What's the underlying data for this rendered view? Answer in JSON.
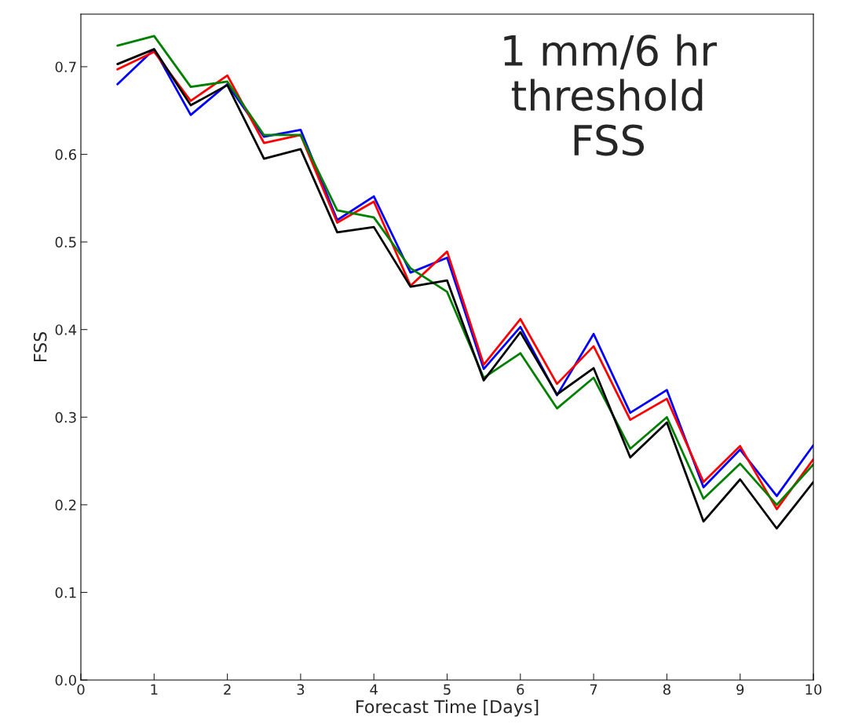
{
  "chart_data": {
    "type": "line",
    "xlabel": "Forecast Time [Days]",
    "ylabel": "FSS",
    "annotations": [
      "1 mm/6 hr\nthreshold\nFSS"
    ],
    "x": [
      0.5,
      1,
      1.5,
      2,
      2.5,
      3,
      3.5,
      4,
      4.5,
      5,
      5.5,
      6,
      6.5,
      7,
      7.5,
      8,
      8.5,
      9,
      9.5,
      10
    ],
    "series": [
      {
        "color": "#0000ff",
        "values": [
          0.68,
          0.72,
          0.645,
          0.68,
          0.62,
          0.628,
          0.525,
          0.552,
          0.465,
          0.482,
          0.355,
          0.403,
          0.325,
          0.395,
          0.305,
          0.331,
          0.22,
          0.263,
          0.21,
          0.268
        ]
      },
      {
        "color": "#ff0000",
        "values": [
          0.697,
          0.717,
          0.661,
          0.69,
          0.613,
          0.622,
          0.522,
          0.546,
          0.45,
          0.489,
          0.36,
          0.412,
          0.338,
          0.381,
          0.297,
          0.321,
          0.226,
          0.267,
          0.195,
          0.252
        ]
      },
      {
        "color": "#008000",
        "values": [
          0.724,
          0.735,
          0.677,
          0.683,
          0.622,
          0.622,
          0.536,
          0.528,
          0.47,
          0.443,
          0.345,
          0.373,
          0.31,
          0.345,
          0.264,
          0.3,
          0.207,
          0.247,
          0.2,
          0.246
        ]
      },
      {
        "color": "#000000",
        "values": [
          0.703,
          0.72,
          0.656,
          0.679,
          0.595,
          0.606,
          0.511,
          0.517,
          0.449,
          0.456,
          0.342,
          0.397,
          0.326,
          0.356,
          0.254,
          0.294,
          0.181,
          0.229,
          0.173,
          0.226
        ]
      }
    ],
    "xlim": [
      0,
      10
    ],
    "xticks": [
      0,
      1,
      2,
      3,
      4,
      5,
      6,
      7,
      8,
      9,
      10
    ],
    "ylim": [
      0,
      0.76
    ],
    "yticks": [
      {
        "value": 0,
        "label": "0.0"
      },
      0.1,
      0.2,
      0.3,
      0.4,
      0.5,
      0.6,
      0.7
    ],
    "grid": false,
    "marker": "none",
    "line_style": "solid"
  }
}
